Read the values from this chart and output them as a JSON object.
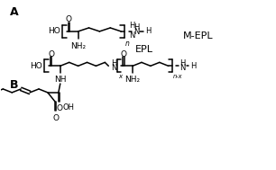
{
  "background_color": "#ffffff",
  "label_A": "A",
  "label_B": "B",
  "label_EPL": "EPL",
  "label_MEPL": "M-EPL",
  "text_color": "#000000",
  "fig_width": 3.06,
  "fig_height": 1.89,
  "dpi": 100
}
